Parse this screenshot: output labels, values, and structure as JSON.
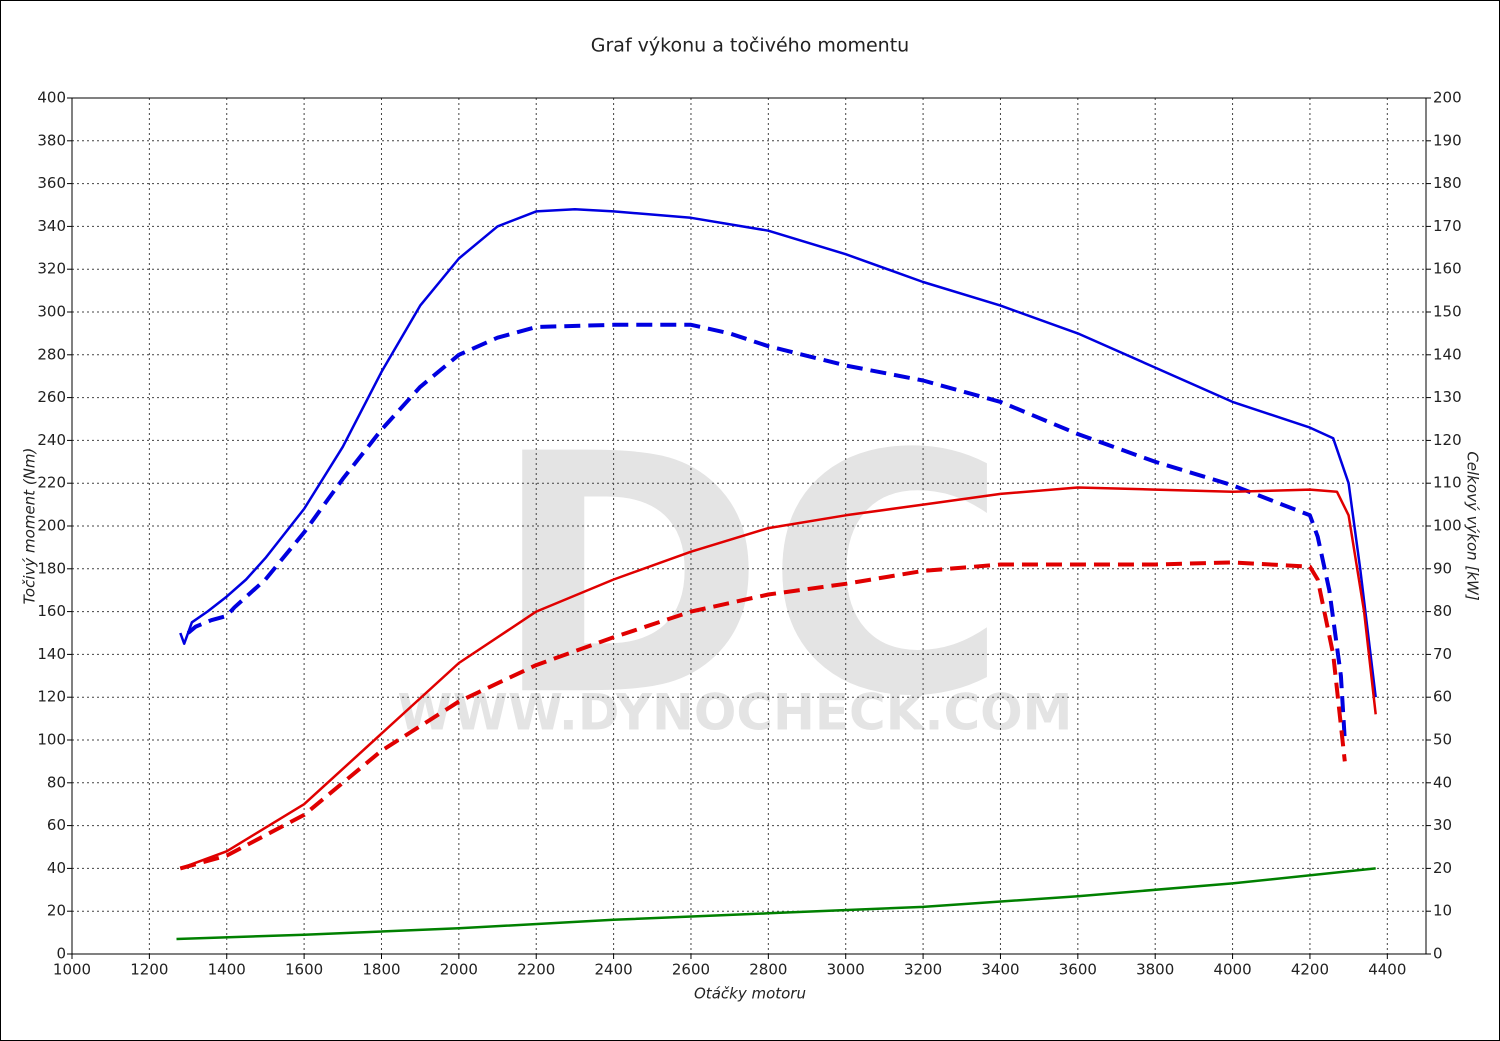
{
  "chart_data": {
    "type": "line",
    "title": "Graf výkonu a točivého momentu",
    "x_label": "Otáčky motoru",
    "y_label": "Točivý moment (Nm)",
    "y2_label": "Celkový výkon [kW]",
    "watermark": "DC",
    "watermark_url": "WWW.DYNOCHECK.COM",
    "xlim": [
      1000,
      4500
    ],
    "xticks": [
      1000,
      1200,
      1400,
      1600,
      1800,
      2000,
      2200,
      2400,
      2600,
      2800,
      3000,
      3200,
      3400,
      3600,
      3800,
      4000,
      4200,
      4400
    ],
    "ylim": [
      0,
      400
    ],
    "yticks": [
      0,
      20,
      40,
      60,
      80,
      100,
      120,
      140,
      160,
      180,
      200,
      220,
      240,
      260,
      280,
      300,
      320,
      340,
      360,
      380,
      400
    ],
    "y2lim": [
      0,
      200
    ],
    "y2ticks": [
      0,
      10,
      20,
      30,
      40,
      50,
      60,
      70,
      80,
      90,
      100,
      110,
      120,
      130,
      140,
      150,
      160,
      170,
      180,
      190,
      200
    ],
    "grid": true,
    "series": [
      {
        "color": "#0000e0",
        "dashed": false,
        "x": [
          1280,
          1290,
          1310,
          1350,
          1400,
          1450,
          1500,
          1600,
          1700,
          1800,
          1900,
          2000,
          2100,
          2200,
          2300,
          2400,
          2600,
          2800,
          3000,
          3200,
          3400,
          3600,
          3800,
          4000,
          4200,
          4260,
          4300,
          4330,
          4370
        ],
        "values": [
          150,
          145,
          155,
          160,
          167,
          175,
          185,
          208,
          237,
          272,
          303,
          325,
          340,
          347,
          348,
          347,
          344,
          338,
          327,
          314,
          303,
          290,
          274,
          258,
          246,
          241,
          220,
          180,
          120
        ]
      },
      {
        "color": "#0000e0",
        "dashed": true,
        "x": [
          1300,
          1320,
          1360,
          1400,
          1420,
          1500,
          1600,
          1700,
          1800,
          1900,
          2000,
          2100,
          2200,
          2400,
          2600,
          2700,
          2800,
          3000,
          3200,
          3400,
          3600,
          3800,
          4000,
          4200,
          4220,
          4250,
          4280,
          4290
        ],
        "values": [
          150,
          153,
          156,
          158,
          162,
          175,
          197,
          222,
          245,
          265,
          280,
          288,
          293,
          294,
          294,
          290,
          284,
          275,
          268,
          258,
          243,
          230,
          219,
          205,
          195,
          170,
          130,
          100
        ]
      },
      {
        "color": "#e00000",
        "dashed": false,
        "axis": "y2",
        "x": [
          1280,
          1400,
          1600,
          1800,
          2000,
          2200,
          2400,
          2600,
          2800,
          3000,
          3200,
          3400,
          3600,
          3800,
          4000,
          4200,
          4270,
          4300,
          4340,
          4370
        ],
        "values": [
          20,
          24,
          35,
          51.5,
          68,
          80,
          87.5,
          94,
          99.5,
          102.5,
          105,
          107.5,
          109,
          108.5,
          108,
          108.5,
          108,
          102.5,
          80,
          56
        ]
      },
      {
        "color": "#e00000",
        "dashed": true,
        "axis": "y2",
        "x": [
          1280,
          1400,
          1600,
          1800,
          2000,
          2200,
          2400,
          2600,
          2800,
          3000,
          3200,
          3400,
          3600,
          3800,
          4000,
          4200,
          4220,
          4260,
          4290
        ],
        "values": [
          20,
          23,
          32.5,
          47.5,
          59,
          67.5,
          74,
          80,
          84,
          86.5,
          89.5,
          91,
          91,
          91,
          91.5,
          90.5,
          87.5,
          70,
          45
        ]
      },
      {
        "color": "#008000",
        "dashed": false,
        "x": [
          1270,
          1600,
          2000,
          2400,
          2800,
          3200,
          3600,
          4000,
          4370
        ],
        "values": [
          7,
          9,
          12,
          16,
          19,
          22,
          27,
          33,
          40
        ]
      }
    ]
  }
}
